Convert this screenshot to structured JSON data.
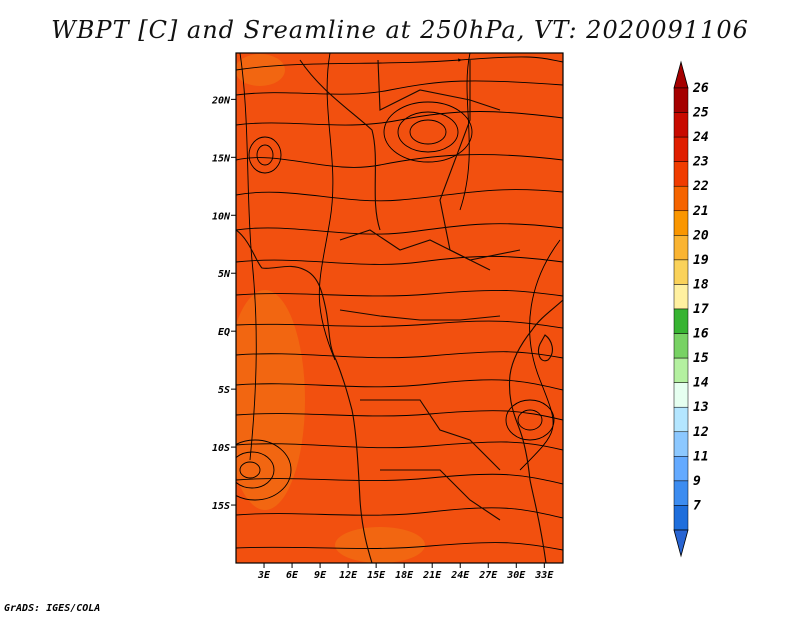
{
  "title": "WBPT [C] and Sreamline at 250hPa, VT: 2020091106",
  "credit": "GrADS: IGES/COLA",
  "map": {
    "lat_range": [
      -20,
      24
    ],
    "lon_range": [
      0,
      35
    ],
    "background_field_color": "#f2500f",
    "warm_field_color": "#f26a12",
    "streamline_color": "#000000",
    "x_ticks": [
      {
        "lon": 3,
        "label": "3E"
      },
      {
        "lon": 6,
        "label": "6E"
      },
      {
        "lon": 9,
        "label": "9E"
      },
      {
        "lon": 12,
        "label": "12E"
      },
      {
        "lon": 15,
        "label": "15E"
      },
      {
        "lon": 18,
        "label": "18E"
      },
      {
        "lon": 21,
        "label": "21E"
      },
      {
        "lon": 24,
        "label": "24E"
      },
      {
        "lon": 27,
        "label": "27E"
      },
      {
        "lon": 30,
        "label": "30E"
      },
      {
        "lon": 33,
        "label": "33E"
      }
    ],
    "y_ticks": [
      {
        "lat": 20,
        "label": "20N"
      },
      {
        "lat": 15,
        "label": "15N"
      },
      {
        "lat": 10,
        "label": "10N"
      },
      {
        "lat": 5,
        "label": "5N"
      },
      {
        "lat": 0,
        "label": "EQ"
      },
      {
        "lat": -5,
        "label": "5S"
      },
      {
        "lat": -10,
        "label": "10S"
      },
      {
        "lat": -15,
        "label": "15S"
      }
    ]
  },
  "colorbar": {
    "levels": [
      {
        "label": "26",
        "color": "#a50000"
      },
      {
        "label": "25",
        "color": "#c80a00"
      },
      {
        "label": "24",
        "color": "#e01e00"
      },
      {
        "label": "23",
        "color": "#f03c00"
      },
      {
        "label": "22",
        "color": "#f56400"
      },
      {
        "label": "21",
        "color": "#fa9600"
      },
      {
        "label": "20",
        "color": "#fab432"
      },
      {
        "label": "19",
        "color": "#fad25a"
      },
      {
        "label": "18",
        "color": "#fff0a0"
      },
      {
        "label": "17",
        "color": "#37b432"
      },
      {
        "label": "16",
        "color": "#78d264"
      },
      {
        "label": "15",
        "color": "#b4f0a0"
      },
      {
        "label": "14",
        "color": "#e6fff0"
      },
      {
        "label": "13",
        "color": "#b4e6ff"
      },
      {
        "label": "12",
        "color": "#8cc8ff"
      },
      {
        "label": "11",
        "color": "#64aaff"
      },
      {
        "label": "9",
        "color": "#3c8cf0"
      },
      {
        "label": "7",
        "color": "#1e6edc"
      }
    ],
    "top_cap_color": "#a50000",
    "bottom_cap_color": "#2864d2"
  }
}
